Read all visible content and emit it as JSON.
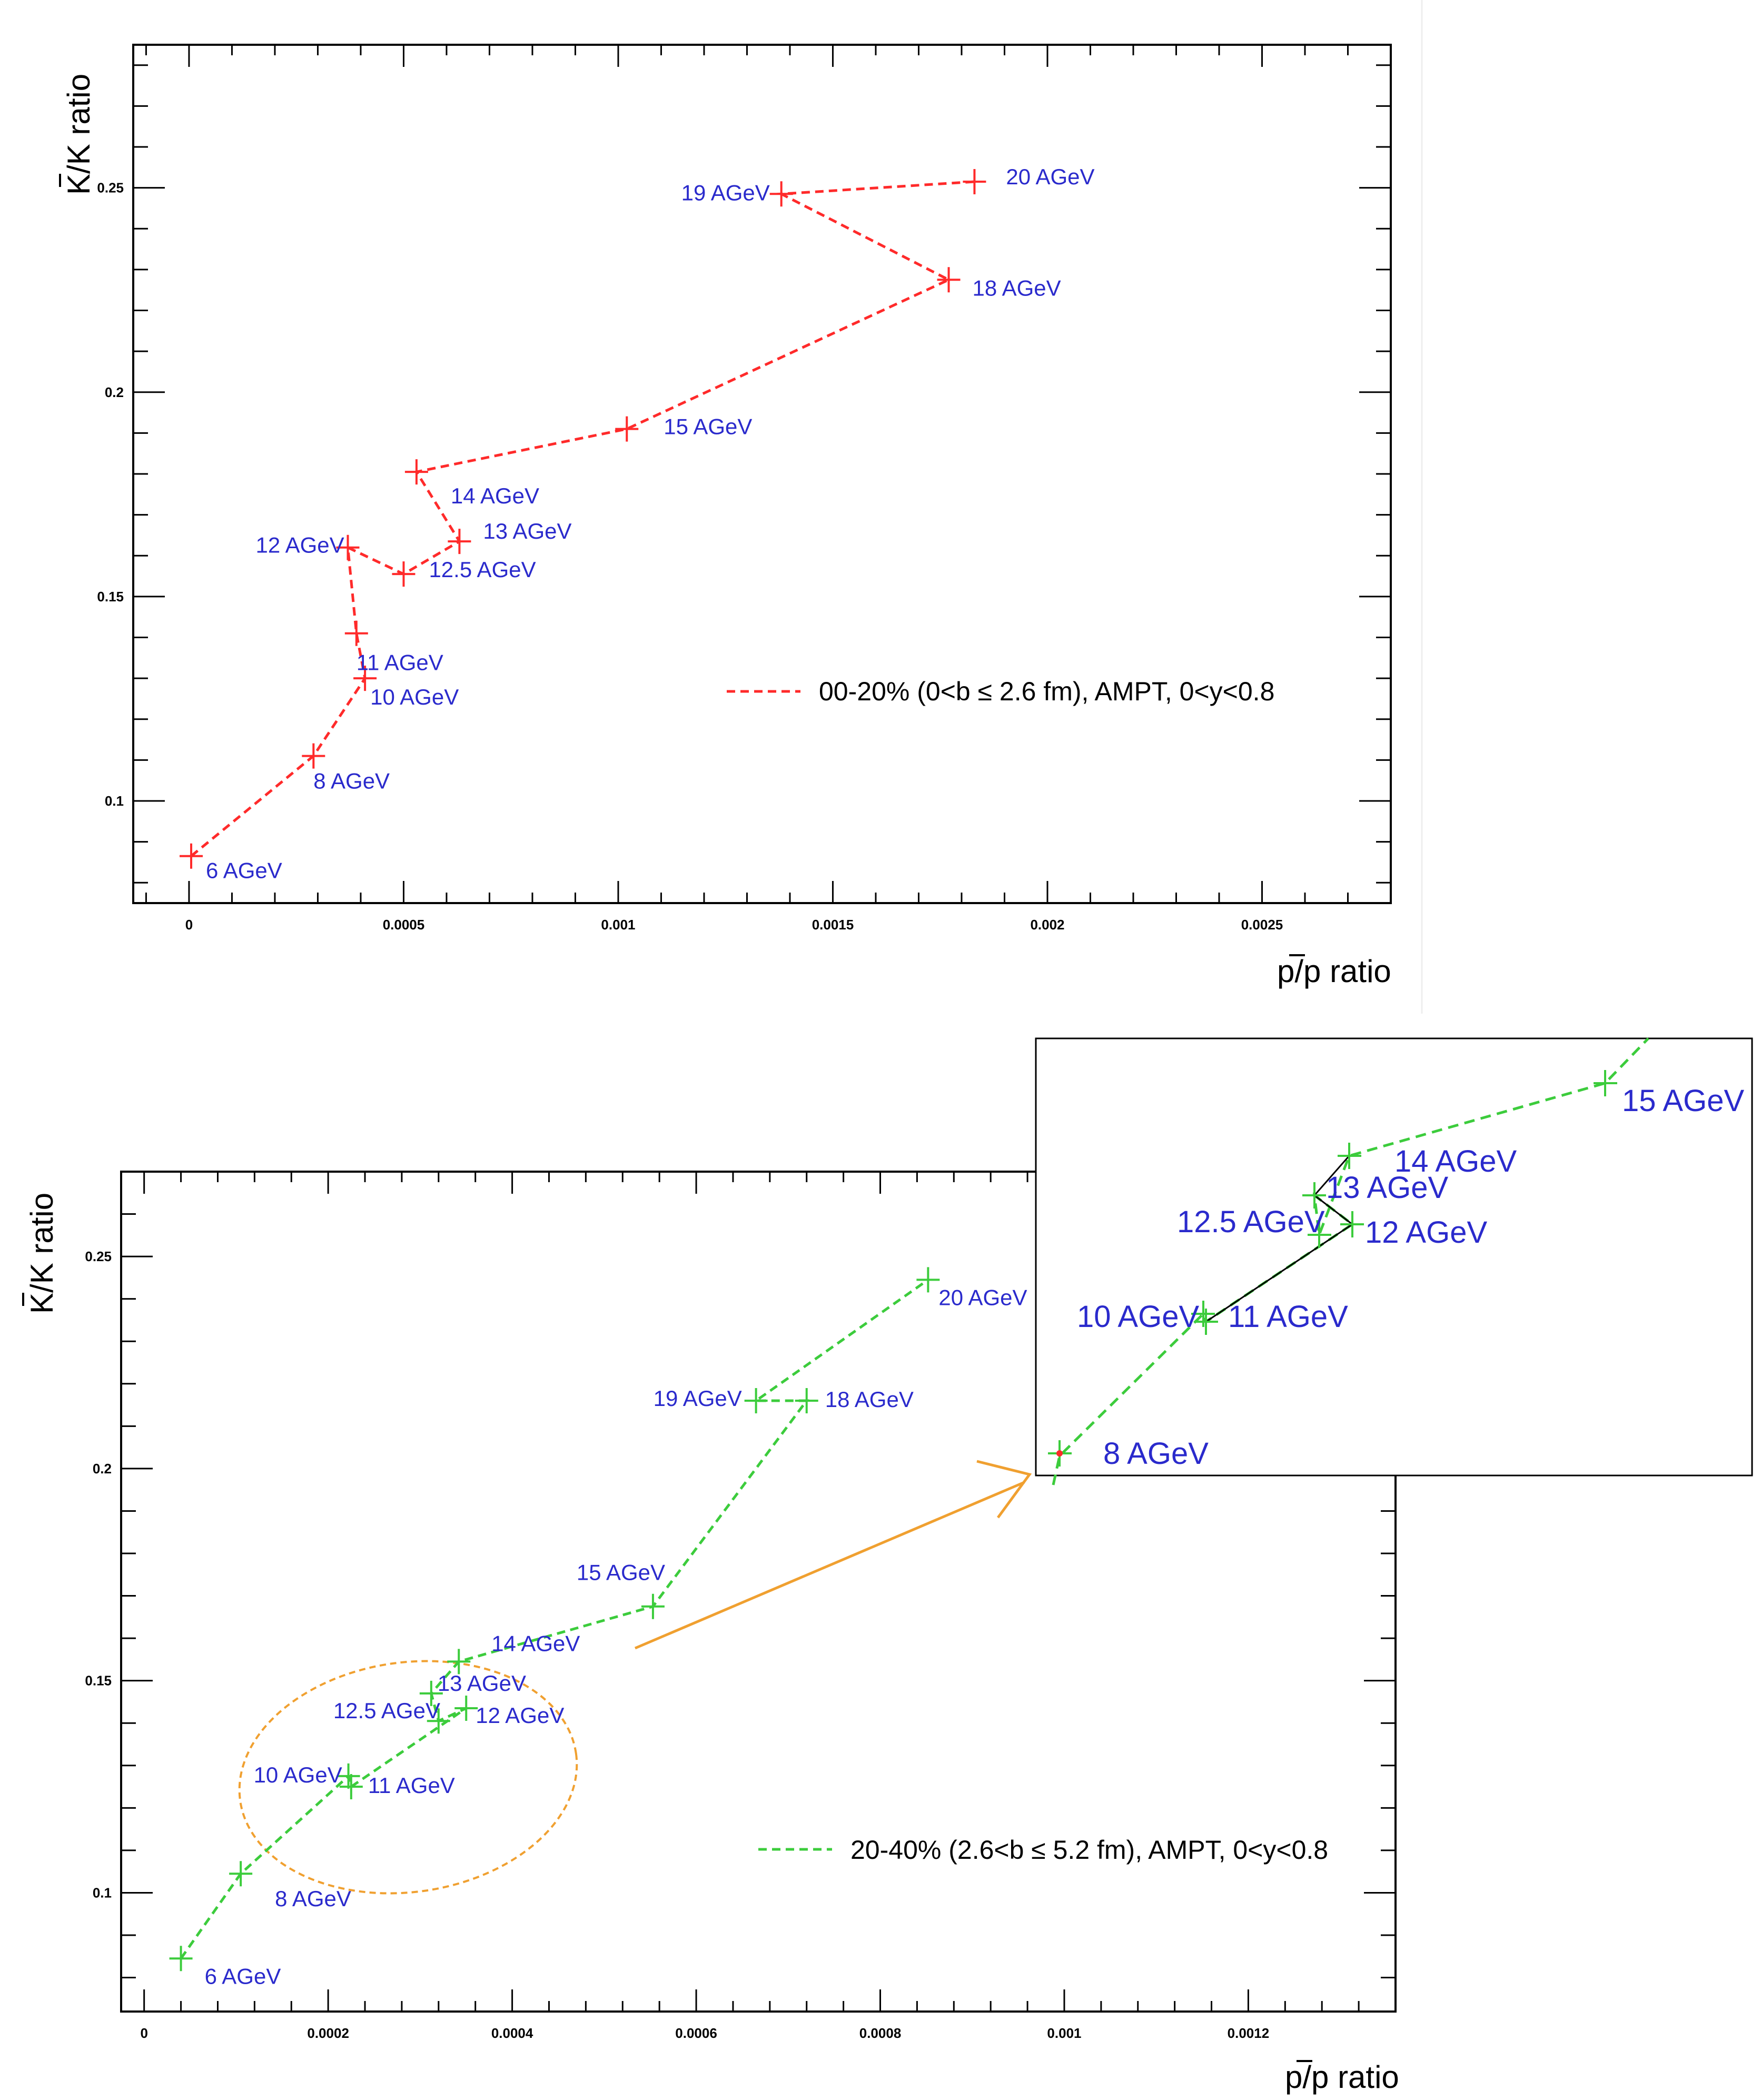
{
  "chart_data": [
    {
      "type": "line",
      "xlabel": "p/p ratio",
      "ylabel": "K/K ratio",
      "xlim": [
        -0.00013,
        0.0028
      ],
      "ylim": [
        0.075,
        0.285
      ],
      "x_ticks": [
        0,
        0.0005,
        0.001,
        0.0015,
        0.002,
        0.0025
      ],
      "x_tick_labels": [
        "0",
        "0.0005",
        "0.001",
        "0.0015",
        "0.002",
        "0.0025"
      ],
      "y_ticks": [
        0.1,
        0.15,
        0.2,
        0.25
      ],
      "y_tick_labels": [
        "0.1",
        "0.15",
        "0.2",
        "0.25"
      ],
      "legend_position": "lower-right",
      "series": [
        {
          "name": "00-20% (0<b ≤ 2.6 fm), AMPT, 0<y<0.8",
          "color": "#ff2a2a",
          "points": [
            {
              "label": "6 AGeV",
              "x": 5e-06,
              "y": 0.0865
            },
            {
              "label": "8 AGeV",
              "x": 0.00029,
              "y": 0.111
            },
            {
              "label": "10 AGeV",
              "x": 0.00041,
              "y": 0.13
            },
            {
              "label": "11 AGeV",
              "x": 0.00039,
              "y": 0.141
            },
            {
              "label": "12 AGeV",
              "x": 0.00037,
              "y": 0.162
            },
            {
              "label": "12.5 AGeV",
              "x": 0.0005,
              "y": 0.1555
            },
            {
              "label": "13 AGeV",
              "x": 0.00063,
              "y": 0.1635
            },
            {
              "label": "14 AGeV",
              "x": 0.00053,
              "y": 0.1805
            },
            {
              "label": "15 AGeV",
              "x": 0.00102,
              "y": 0.191
            },
            {
              "label": "18 AGeV",
              "x": 0.00177,
              "y": 0.2275
            },
            {
              "label": "19 AGeV",
              "x": 0.00138,
              "y": 0.2485
            },
            {
              "label": "20 AGeV",
              "x": 0.00183,
              "y": 0.2515
            }
          ]
        }
      ]
    },
    {
      "type": "line",
      "xlabel": "p/p ratio",
      "ylabel": "K/K ratio",
      "xlim": [
        -2.5e-05,
        0.00136
      ],
      "ylim": [
        0.072,
        0.27
      ],
      "x_ticks": [
        0,
        0.0002,
        0.0004,
        0.0006,
        0.0008,
        0.001,
        0.0012
      ],
      "x_tick_labels": [
        "0",
        "0.0002",
        "0.0004",
        "0.0006",
        "0.0008",
        "0.001",
        "0.0012"
      ],
      "y_ticks": [
        0.1,
        0.15,
        0.2,
        0.25
      ],
      "y_tick_labels": [
        "0.1",
        "0.15",
        "0.2",
        "0.25"
      ],
      "legend_position": "lower-right",
      "series": [
        {
          "name": "20-40% (2.6<b ≤ 5.2 fm), AMPT, 0<y<0.8",
          "color": "#3ccc3c",
          "points": [
            {
              "label": "6 AGeV",
              "x": 4e-05,
              "y": 0.0845
            },
            {
              "label": "8 AGeV",
              "x": 0.000105,
              "y": 0.1045
            },
            {
              "label": "10 AGeV",
              "x": 0.000222,
              "y": 0.1275
            },
            {
              "label": "11 AGeV",
              "x": 0.000225,
              "y": 0.125
            },
            {
              "label": "12 AGeV",
              "x": 0.00035,
              "y": 0.1435
            },
            {
              "label": "12.5 AGeV",
              "x": 0.00032,
              "y": 0.1405
            },
            {
              "label": "13 AGeV",
              "x": 0.000312,
              "y": 0.147
            },
            {
              "label": "14 AGeV",
              "x": 0.000342,
              "y": 0.1545
            },
            {
              "label": "15 AGeV",
              "x": 0.000553,
              "y": 0.1675
            },
            {
              "label": "18 AGeV",
              "x": 0.00072,
              "y": 0.216
            },
            {
              "label": "19 AGeV",
              "x": 0.000665,
              "y": 0.216
            },
            {
              "label": "20 AGeV",
              "x": 0.000852,
              "y": 0.2445
            }
          ]
        }
      ]
    }
  ],
  "inset": {
    "labels": [
      "15 AGeV",
      "14 AGeV",
      "13 AGeV",
      "12.5 AGeV",
      "12 AGeV",
      "10 AGeV",
      "11 AGeV",
      "8 AGeV"
    ]
  }
}
